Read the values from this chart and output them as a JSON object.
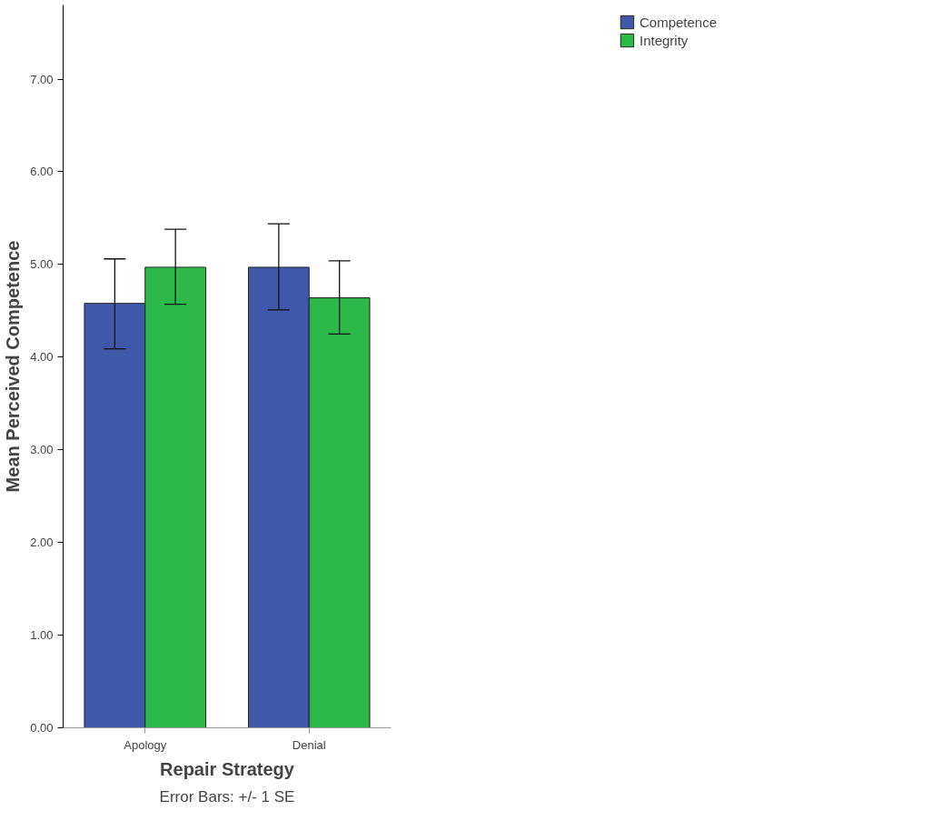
{
  "chart_data": {
    "type": "bar",
    "xlabel": "Repair Strategy",
    "ylabel": "Mean Perceived Competence",
    "categories": [
      "Apology",
      "Denial"
    ],
    "series": [
      {
        "name": "Competence",
        "color": "#3f58aa",
        "values": [
          4.58,
          4.97
        ],
        "errors": [
          [
            4.09,
            5.06
          ],
          [
            4.51,
            5.44
          ]
        ]
      },
      {
        "name": "Integrity",
        "color": "#2db84a",
        "values": [
          4.97,
          4.64
        ],
        "errors": [
          [
            4.57,
            5.38
          ],
          [
            4.25,
            5.04
          ]
        ]
      }
    ],
    "ylim": [
      0,
      7.8
    ],
    "yticks": [
      {
        "value": 0,
        "label": "0.00"
      },
      {
        "value": 1,
        "label": "1.00"
      },
      {
        "value": 2,
        "label": "2.00"
      },
      {
        "value": 3,
        "label": "3.00"
      },
      {
        "value": 4,
        "label": "4.00"
      },
      {
        "value": 5,
        "label": "5.00"
      },
      {
        "value": 6,
        "label": "6.00"
      },
      {
        "value": 7,
        "label": "7.00"
      }
    ],
    "grid": false,
    "legend": "top right",
    "annotations": [
      "Error Bars: +/- 1 SE"
    ]
  }
}
